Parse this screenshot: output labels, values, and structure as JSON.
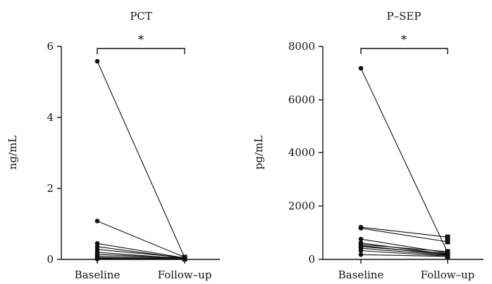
{
  "chart_data": [
    {
      "type": "line",
      "title": "PCT",
      "xlabel": "",
      "ylabel": "ng/mL",
      "categories": [
        "Baseline",
        "Follow-up"
      ],
      "ylim": [
        0,
        6
      ],
      "yticks": [
        0,
        2,
        4,
        6
      ],
      "significance": "*",
      "pairs": [
        [
          5.58,
          0.05
        ],
        [
          1.08,
          0.06
        ],
        [
          0.45,
          0.04
        ],
        [
          0.36,
          0.03
        ],
        [
          0.28,
          0.05
        ],
        [
          0.2,
          0.02
        ],
        [
          0.14,
          0.04
        ],
        [
          0.09,
          0.03
        ],
        [
          0.05,
          0.02
        ],
        [
          0.03,
          0.01
        ],
        [
          0.01,
          0.01
        ]
      ]
    },
    {
      "type": "line",
      "title": "P-SEP",
      "xlabel": "",
      "ylabel": "pg/mL",
      "categories": [
        "Baseline",
        "Follow-up"
      ],
      "ylim": [
        0,
        8000
      ],
      "yticks": [
        0,
        2000,
        4000,
        6000,
        8000
      ],
      "significance": "*",
      "pairs": [
        [
          7180,
          260
        ],
        [
          1210,
          840
        ],
        [
          1170,
          660
        ],
        [
          760,
          240
        ],
        [
          620,
          190
        ],
        [
          560,
          290
        ],
        [
          520,
          170
        ],
        [
          480,
          220
        ],
        [
          420,
          150
        ],
        [
          330,
          120
        ],
        [
          180,
          110
        ]
      ]
    }
  ],
  "display": {
    "panels": [
      {
        "title": "PCT",
        "ylabel": "ng/mL",
        "yticklabels": [
          "0",
          "2",
          "4",
          "6"
        ],
        "xticklabels": [
          "Baseline",
          "Follow–up"
        ],
        "star": "*"
      },
      {
        "title": "P–SEP",
        "ylabel": "pg/mL",
        "yticklabels": [
          "0",
          "2000",
          "4000",
          "6000",
          "8000"
        ],
        "xticklabels": [
          "Baseline",
          "Follow–up"
        ],
        "star": "*"
      }
    ]
  }
}
